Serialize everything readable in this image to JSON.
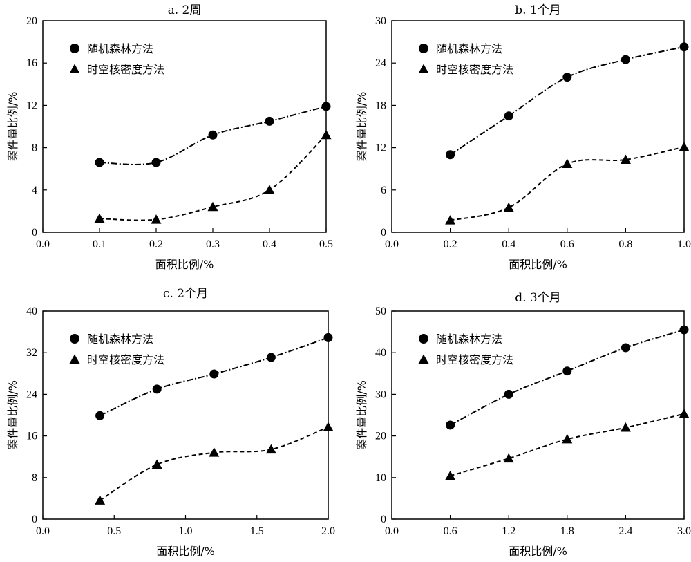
{
  "chart_data": [
    {
      "type": "scatter",
      "title": "a. 2周",
      "xlabel": "面积比例/%",
      "ylabel": "案件量比例/%",
      "xlim": [
        0.0,
        0.5
      ],
      "ylim": [
        0,
        20
      ],
      "xticks": [
        "0.0",
        "0.1",
        "0.2",
        "0.3",
        "0.4",
        "0.5"
      ],
      "yticks": [
        "0",
        "4",
        "8",
        "12",
        "16",
        "20"
      ],
      "legend_position": "top-left",
      "series": [
        {
          "name": "随机森林方法",
          "marker": "circle",
          "line_style": "dash-dot",
          "x": [
            0.1,
            0.2,
            0.3,
            0.4,
            0.5
          ],
          "y": [
            6.6,
            6.6,
            9.2,
            10.5,
            11.9
          ]
        },
        {
          "name": "时空核密度方法",
          "marker": "triangle",
          "line_style": "dashed",
          "x": [
            0.1,
            0.2,
            0.3,
            0.4,
            0.5
          ],
          "y": [
            1.3,
            1.2,
            2.4,
            4.0,
            9.2
          ]
        }
      ]
    },
    {
      "type": "scatter",
      "title": "b. 1个月",
      "xlabel": "面积比例/%",
      "ylabel": "案件量比例/%",
      "xlim": [
        0.0,
        1.0
      ],
      "ylim": [
        0,
        30
      ],
      "xticks": [
        "0.0",
        "0.2",
        "0.4",
        "0.6",
        "0.8",
        "1.0"
      ],
      "yticks": [
        "0",
        "6",
        "12",
        "18",
        "24",
        "30"
      ],
      "legend_position": "top-left",
      "series": [
        {
          "name": "随机森林方法",
          "marker": "circle",
          "line_style": "dash-dot",
          "x": [
            0.2,
            0.4,
            0.6,
            0.8,
            1.0
          ],
          "y": [
            11.0,
            16.5,
            22.0,
            24.5,
            26.3
          ]
        },
        {
          "name": "时空核密度方法",
          "marker": "triangle",
          "line_style": "dashed",
          "x": [
            0.2,
            0.4,
            0.6,
            0.8,
            1.0
          ],
          "y": [
            1.7,
            3.5,
            9.7,
            10.3,
            12.1
          ]
        }
      ]
    },
    {
      "type": "scatter",
      "title": "c. 2个月",
      "xlabel": "面积比例/%",
      "ylabel": "案件量比例/%",
      "xlim": [
        0.0,
        2.0
      ],
      "ylim": [
        0,
        40
      ],
      "xticks": [
        "0.0",
        "0.5",
        "1.0",
        "1.5",
        "2.0"
      ],
      "yticks": [
        "0",
        "8",
        "16",
        "24",
        "32",
        "40"
      ],
      "legend_position": "top-left",
      "series": [
        {
          "name": "随机森林方法",
          "marker": "circle",
          "line_style": "dash-dot",
          "x": [
            0.4,
            0.8,
            1.2,
            1.6,
            2.0
          ],
          "y": [
            19.9,
            25.0,
            27.9,
            31.1,
            34.9
          ]
        },
        {
          "name": "时空核密度方法",
          "marker": "triangle",
          "line_style": "dashed",
          "x": [
            0.4,
            0.8,
            1.2,
            1.6,
            2.0
          ],
          "y": [
            3.6,
            10.5,
            12.8,
            13.4,
            17.7
          ]
        }
      ]
    },
    {
      "type": "scatter",
      "title": "d. 3个月",
      "xlabel": "面积比例/%",
      "ylabel": "案件量比例/%",
      "xlim": [
        0.0,
        3.0
      ],
      "ylim": [
        0,
        50
      ],
      "xticks": [
        "0.0",
        "0.6",
        "1.2",
        "1.8",
        "2.4",
        "3.0"
      ],
      "yticks": [
        "0",
        "10",
        "20",
        "30",
        "40",
        "50"
      ],
      "legend_position": "top-left",
      "series": [
        {
          "name": "随机森林方法",
          "marker": "circle",
          "line_style": "dash-dot",
          "x": [
            0.6,
            1.2,
            1.8,
            2.4,
            3.0
          ],
          "y": [
            22.6,
            30.0,
            35.6,
            41.2,
            45.5
          ]
        },
        {
          "name": "时空核密度方法",
          "marker": "triangle",
          "line_style": "dashed",
          "x": [
            0.6,
            1.2,
            1.8,
            2.4,
            3.0
          ],
          "y": [
            10.4,
            14.6,
            19.2,
            22.0,
            25.3
          ]
        }
      ]
    }
  ]
}
